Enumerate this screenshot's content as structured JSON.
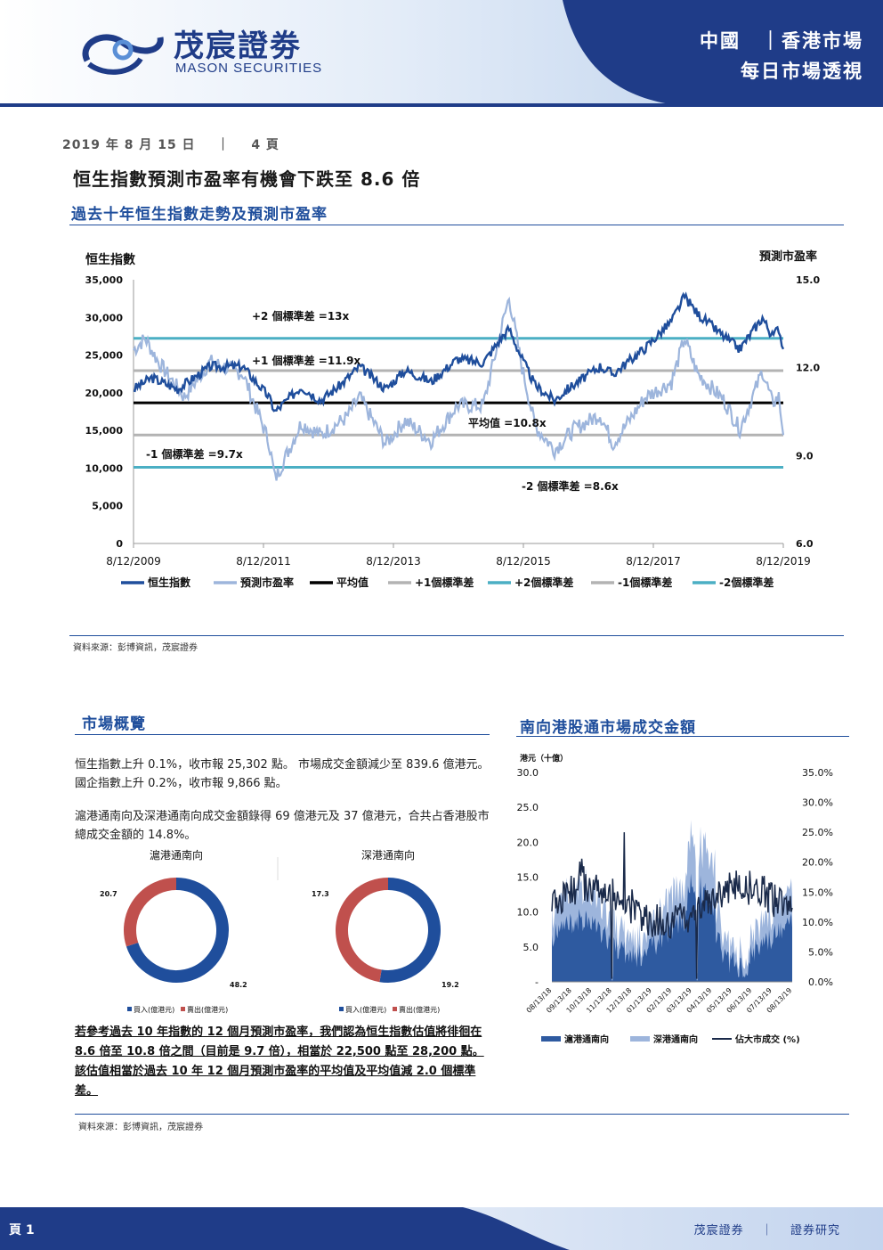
{
  "header": {
    "logo_cn": "茂宸證劵",
    "logo_en": "MASON SECURITIES",
    "region": "中國　｜香港市場",
    "publication": "每日市場透視"
  },
  "meta": {
    "date": "2019 年 8 月 15 日",
    "separator": "｜",
    "page": "4 頁"
  },
  "main_title": "恒生指數預測市盈率有機會下跌至 8.6 倍",
  "section1": {
    "title": "過去十年恒生指數走勢及預測市盈率",
    "source": "資料來源：彭博資訊，茂宸證券"
  },
  "section2": {
    "title": "市場概覽",
    "para1": "恒生指數上升 0.1%，收市報 25,302 點。 市場成交金額減少至 839.6 億港元。國企指數上升 0.2%，收市報 9,866 點。",
    "para2": "滬港通南向及深港通南向成交金額錄得 69 億港元及 37 億港元，合共占香港股市總成交金額的 14.8%。",
    "note": "若參考過去 10 年指數的 12 個月預測市盈率，我們認為恒生指數估值將徘徊在 8.6 倍至 10.8 倍之間（目前是 9.7 倍），相當於 22,500 點至 28,200 點。該估值相當於過去 10 年 12 個月預測市盈率的平均值及平均值減 2.0 個標準差。",
    "source": "資料來源：彭博資訊，茂宸證券"
  },
  "section3": {
    "title": "南向港股通市場成交金額"
  },
  "footer": {
    "page": "頁 1",
    "brand": "茂宸證券",
    "sep": "｜",
    "dept": "證券研究"
  },
  "colors": {
    "navy": "#1f4e9c",
    "hsi": "#1f4e9c",
    "pe": "#9db5dc",
    "mean": "#000000",
    "sd1": "#b3b3b3",
    "sd2": "#4bafc4",
    "donut_buy": "#1f4e9c",
    "donut_sell": "#c0504d"
  },
  "chart_data": [
    {
      "type": "line",
      "ylabel_left": "恒生指數",
      "ylabel_right": "預測市盈率",
      "left_ticks": [
        "35,000",
        "30,000",
        "25,000",
        "20,000",
        "15,000",
        "10,000",
        "5,000",
        "0"
      ],
      "right_ticks": [
        "15.0",
        "12.0",
        "9.0",
        "6.0"
      ],
      "ylim_left": [
        0,
        35000
      ],
      "ylim_right": [
        6,
        15
      ],
      "x_ticks": [
        "8/12/2009",
        "8/12/2011",
        "8/12/2013",
        "8/12/2015",
        "8/12/2017",
        "8/12/2019"
      ],
      "hsi_keypoints": [
        [
          2009.62,
          20500
        ],
        [
          2009.9,
          22000
        ],
        [
          2010.3,
          20500
        ],
        [
          2010.8,
          23500
        ],
        [
          2011.3,
          23500
        ],
        [
          2011.7,
          19500
        ],
        [
          2011.8,
          17500
        ],
        [
          2012.2,
          20800
        ],
        [
          2012.5,
          19000
        ],
        [
          2012.8,
          21000
        ],
        [
          2013.1,
          23500
        ],
        [
          2013.5,
          20500
        ],
        [
          2013.8,
          23000
        ],
        [
          2014.2,
          21500
        ],
        [
          2014.6,
          24500
        ],
        [
          2015.0,
          24000
        ],
        [
          2015.3,
          27500
        ],
        [
          2015.4,
          28500
        ],
        [
          2015.6,
          24500
        ],
        [
          2015.8,
          21000
        ],
        [
          2016.1,
          19000
        ],
        [
          2016.3,
          20500
        ],
        [
          2016.8,
          23500
        ],
        [
          2017.0,
          22500
        ],
        [
          2017.5,
          26000
        ],
        [
          2017.9,
          29500
        ],
        [
          2018.1,
          32800
        ],
        [
          2018.3,
          30500
        ],
        [
          2018.7,
          27500
        ],
        [
          2018.95,
          25800
        ],
        [
          2019.2,
          28800
        ],
        [
          2019.3,
          30000
        ],
        [
          2019.45,
          27500
        ],
        [
          2019.55,
          28600
        ],
        [
          2019.62,
          25800
        ]
      ],
      "pe_keypoints": [
        [
          2009.62,
          12.6
        ],
        [
          2009.8,
          13.0
        ],
        [
          2010.0,
          12.2
        ],
        [
          2010.4,
          11.0
        ],
        [
          2010.8,
          12.2
        ],
        [
          2011.3,
          11.8
        ],
        [
          2011.7,
          9.5
        ],
        [
          2011.8,
          8.2
        ],
        [
          2012.2,
          10.1
        ],
        [
          2012.5,
          9.7
        ],
        [
          2012.9,
          10.3
        ],
        [
          2013.1,
          11.0
        ],
        [
          2013.5,
          9.4
        ],
        [
          2013.8,
          10.2
        ],
        [
          2014.2,
          9.5
        ],
        [
          2014.6,
          10.7
        ],
        [
          2015.0,
          10.7
        ],
        [
          2015.3,
          13.5
        ],
        [
          2015.4,
          14.4
        ],
        [
          2015.6,
          12.0
        ],
        [
          2015.8,
          10.0
        ],
        [
          2016.1,
          9.2
        ],
        [
          2016.4,
          9.9
        ],
        [
          2016.8,
          10.4
        ],
        [
          2017.0,
          9.4
        ],
        [
          2017.5,
          11.0
        ],
        [
          2017.9,
          11.5
        ],
        [
          2018.1,
          13.0
        ],
        [
          2018.3,
          11.8
        ],
        [
          2018.7,
          10.9
        ],
        [
          2018.95,
          9.9
        ],
        [
          2019.2,
          11.3
        ],
        [
          2019.3,
          11.9
        ],
        [
          2019.45,
          10.8
        ],
        [
          2019.55,
          11.0
        ],
        [
          2019.62,
          9.7
        ]
      ],
      "mean": 10.8,
      "sd_plus1": 11.9,
      "sd_plus2": 13.0,
      "sd_minus1": 9.7,
      "sd_minus2": 8.6,
      "annotations": [
        {
          "text": "+2 個標準差 =13x"
        },
        {
          "text": "+1 個標準差 =11.9x"
        },
        {
          "text": "平均值 =10.8x"
        },
        {
          "text": "-1 個標準差 =9.7x"
        },
        {
          "text": "-2 個標準差 =8.6x"
        }
      ],
      "legend": [
        "恒生指數",
        "預測市盈率",
        "平均值",
        "+1個標準差",
        "+2個標準差",
        "-1個標準差",
        "-2個標準差"
      ]
    },
    {
      "type": "pie",
      "title": "滬港通南向",
      "values": [
        48.2,
        20.7
      ],
      "labels": [
        "48.2",
        "20.7"
      ],
      "legend": [
        "買入(億港元)",
        "賣出(億港元)"
      ]
    },
    {
      "type": "pie",
      "title": "深港通南向",
      "values": [
        19.2,
        17.3
      ],
      "labels": [
        "19.2",
        "17.3"
      ],
      "legend": [
        "買入(億港元)",
        "賣出(億港元)"
      ]
    },
    {
      "type": "area",
      "ylabel_left": "港元（十億）",
      "left_ticks": [
        "30.0",
        "25.0",
        "20.0",
        "15.0",
        "10.0",
        "5.0",
        "-"
      ],
      "right_ticks": [
        "35.0%",
        "30.0%",
        "25.0%",
        "20.0%",
        "15.0%",
        "10.0%",
        "5.0%",
        "0.0%"
      ],
      "ylim_left": [
        0,
        30
      ],
      "ylim_right": [
        0,
        35
      ],
      "x_ticks": [
        "08/13/18",
        "09/13/18",
        "10/13/18",
        "11/13/18",
        "12/13/18",
        "01/13/19",
        "02/13/19",
        "03/13/19",
        "04/13/19",
        "05/13/19",
        "06/13/19",
        "07/13/19",
        "08/13/19"
      ],
      "legend": [
        "滬港通南向",
        "深港通南向",
        "佔大市成交 (%)"
      ]
    }
  ]
}
